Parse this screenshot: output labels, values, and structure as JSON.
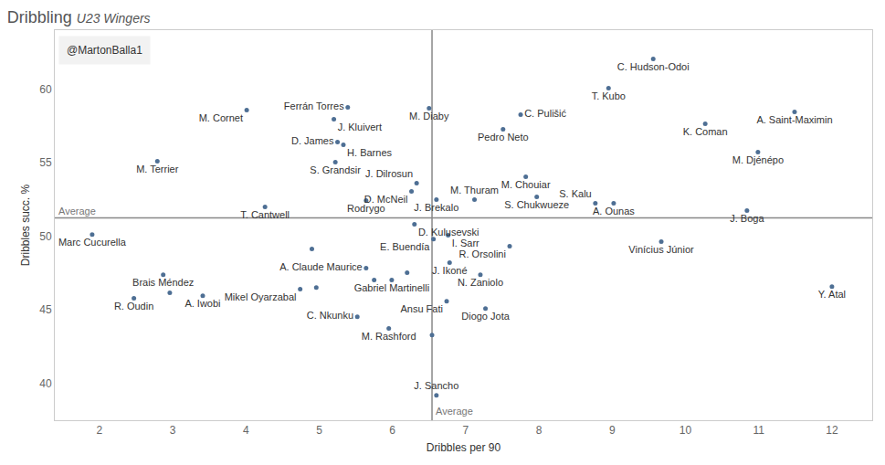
{
  "chart_data": {
    "type": "scatter",
    "title": "Dribbling",
    "subtitle": "U23 Wingers",
    "credit": "@MartonBalla1",
    "x_label": "Dribbles per 90",
    "y_label": "Dribbles succ. %",
    "color": "#4e6f94",
    "grid": false,
    "xlim": [
      1.39,
      12.55
    ],
    "ylim": [
      37.5,
      64
    ],
    "xticks": [
      2,
      3,
      4,
      5,
      6,
      7,
      8,
      9,
      10,
      11,
      12
    ],
    "yticks": [
      40,
      45,
      50,
      55,
      60
    ],
    "reference_lines": [
      {
        "axis": "x",
        "value": 6.54,
        "label": "Average"
      },
      {
        "axis": "y",
        "value": 51.24,
        "label": "Average"
      }
    ],
    "labels": [
      "C. Hudson-Odoi",
      "T. Kubo",
      "A. Saint-Maximin",
      "K. Coman",
      "M. Djénépo",
      "C. Pulišić",
      "Pedro Neto",
      "M. Diaby",
      "Ferrán Torres",
      "J. Kluivert",
      "M. Cornet",
      "D. James",
      "H. Barnes",
      "S. Grandsir",
      "M. Terrier",
      "J. Dilrosun",
      "D. McNeil",
      "Rodrygo",
      "T. Cantwell",
      "J. Brekalo",
      "M. Thuram",
      "M. Chouiar",
      "S. Chukwueze",
      "S. Kalu",
      "A. Ounas",
      "J. Boga",
      "D. Kulusevski",
      "Marc Cucurella",
      "I. Sarr",
      "E. Buendía",
      "Vinícius Júnior",
      "R. Orsolini",
      "J. Ikoné",
      "A. Claude Maurice",
      null,
      "Gabriel Martinelli",
      null,
      null,
      "Mikel Oyarzabal",
      null,
      "Brais Méndez",
      null,
      "R. Oudin",
      "A. Iwobi",
      "C. Nkunku",
      "M. Rashford",
      null,
      "Ansu Fati",
      "Diogo Jota",
      "N. Zaniolo",
      "Y. Atal",
      "J. Sancho"
    ],
    "x": [
      9.56,
      8.95,
      11.49,
      10.27,
      10.99,
      7.75,
      7.51,
      6.5,
      5.39,
      5.2,
      4.01,
      5.25,
      5.33,
      5.22,
      2.79,
      6.33,
      6.26,
      5.64,
      4.26,
      6.6,
      7.12,
      7.82,
      7.97,
      8.77,
      9.02,
      10.84,
      6.3,
      1.9,
      6.76,
      6.56,
      9.67,
      7.6,
      6.78,
      5.64,
      4.9,
      5.99,
      5.75,
      6.2,
      4.74,
      4.96,
      2.87,
      2.96,
      2.47,
      3.41,
      5.52,
      5.95,
      6.54,
      6.74,
      7.27,
      7.2,
      12.0,
      6.6
    ],
    "y": [
      62.05,
      60.06,
      58.45,
      57.64,
      55.71,
      58.26,
      57.27,
      58.7,
      58.76,
      57.95,
      58.57,
      56.4,
      56.21,
      55.03,
      55.09,
      53.6,
      53.04,
      52.42,
      51.99,
      52.48,
      52.48,
      54.04,
      52.67,
      52.24,
      52.24,
      51.74,
      50.81,
      50.12,
      50.06,
      49.81,
      49.63,
      49.32,
      48.2,
      47.83,
      49.13,
      47.02,
      47.02,
      47.52,
      46.4,
      46.52,
      47.39,
      46.15,
      45.78,
      45.96,
      44.53,
      43.73,
      43.29,
      45.59,
      45.09,
      47.39,
      46.58,
      39.19
    ]
  }
}
